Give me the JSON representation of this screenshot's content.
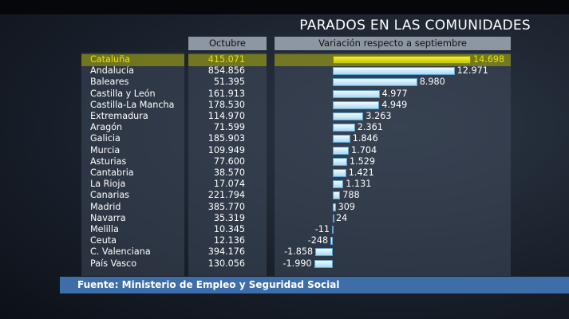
{
  "title": "PARADOS EN LAS COMUNIDADES",
  "footer": "Fuente: Ministerio de Empleo y Seguridad Social",
  "colors": {
    "highlight": "#d4d400",
    "bar": "#c8ecfb",
    "footer": "#3d6ea8"
  },
  "chart_data": {
    "type": "bar",
    "orientation": "horizontal",
    "columns": [
      "Octubre",
      "Variación respecto a septiembre"
    ],
    "highlighted": "Cataluña",
    "categories": [
      "Cataluña",
      "Andalucía",
      "Baleares",
      "Castilla y León",
      "Castilla-La Mancha",
      "Extremadura",
      "Aragón",
      "Galicia",
      "Murcia",
      "Asturias",
      "Cantabria",
      "La Rioja",
      "Canarias",
      "Madrid",
      "Navarra",
      "Melilla",
      "Ceuta",
      "C. Valenciana",
      "País Vasco"
    ],
    "octubre": [
      "415.071",
      "854.856",
      "51.395",
      "161.913",
      "178.530",
      "114.970",
      "71.599",
      "185.903",
      "109.949",
      "77.600",
      "38.570",
      "17.074",
      "221.794",
      "385.770",
      "35.319",
      "10.345",
      "12.136",
      "394.176",
      "130.056"
    ],
    "values": [
      14698,
      12971,
      8980,
      4977,
      4949,
      3263,
      2361,
      1846,
      1704,
      1529,
      1421,
      1131,
      788,
      309,
      24,
      -11,
      -248,
      -1858,
      -1990
    ],
    "labels": [
      "14.698",
      "12.971",
      "8.980",
      "4.977",
      "4.949",
      "3.263",
      "2.361",
      "1.846",
      "1.704",
      "1.529",
      "1.421",
      "1.131",
      "788",
      "309",
      "24",
      "-11",
      "-248",
      "-1.858",
      "-1.990"
    ]
  }
}
